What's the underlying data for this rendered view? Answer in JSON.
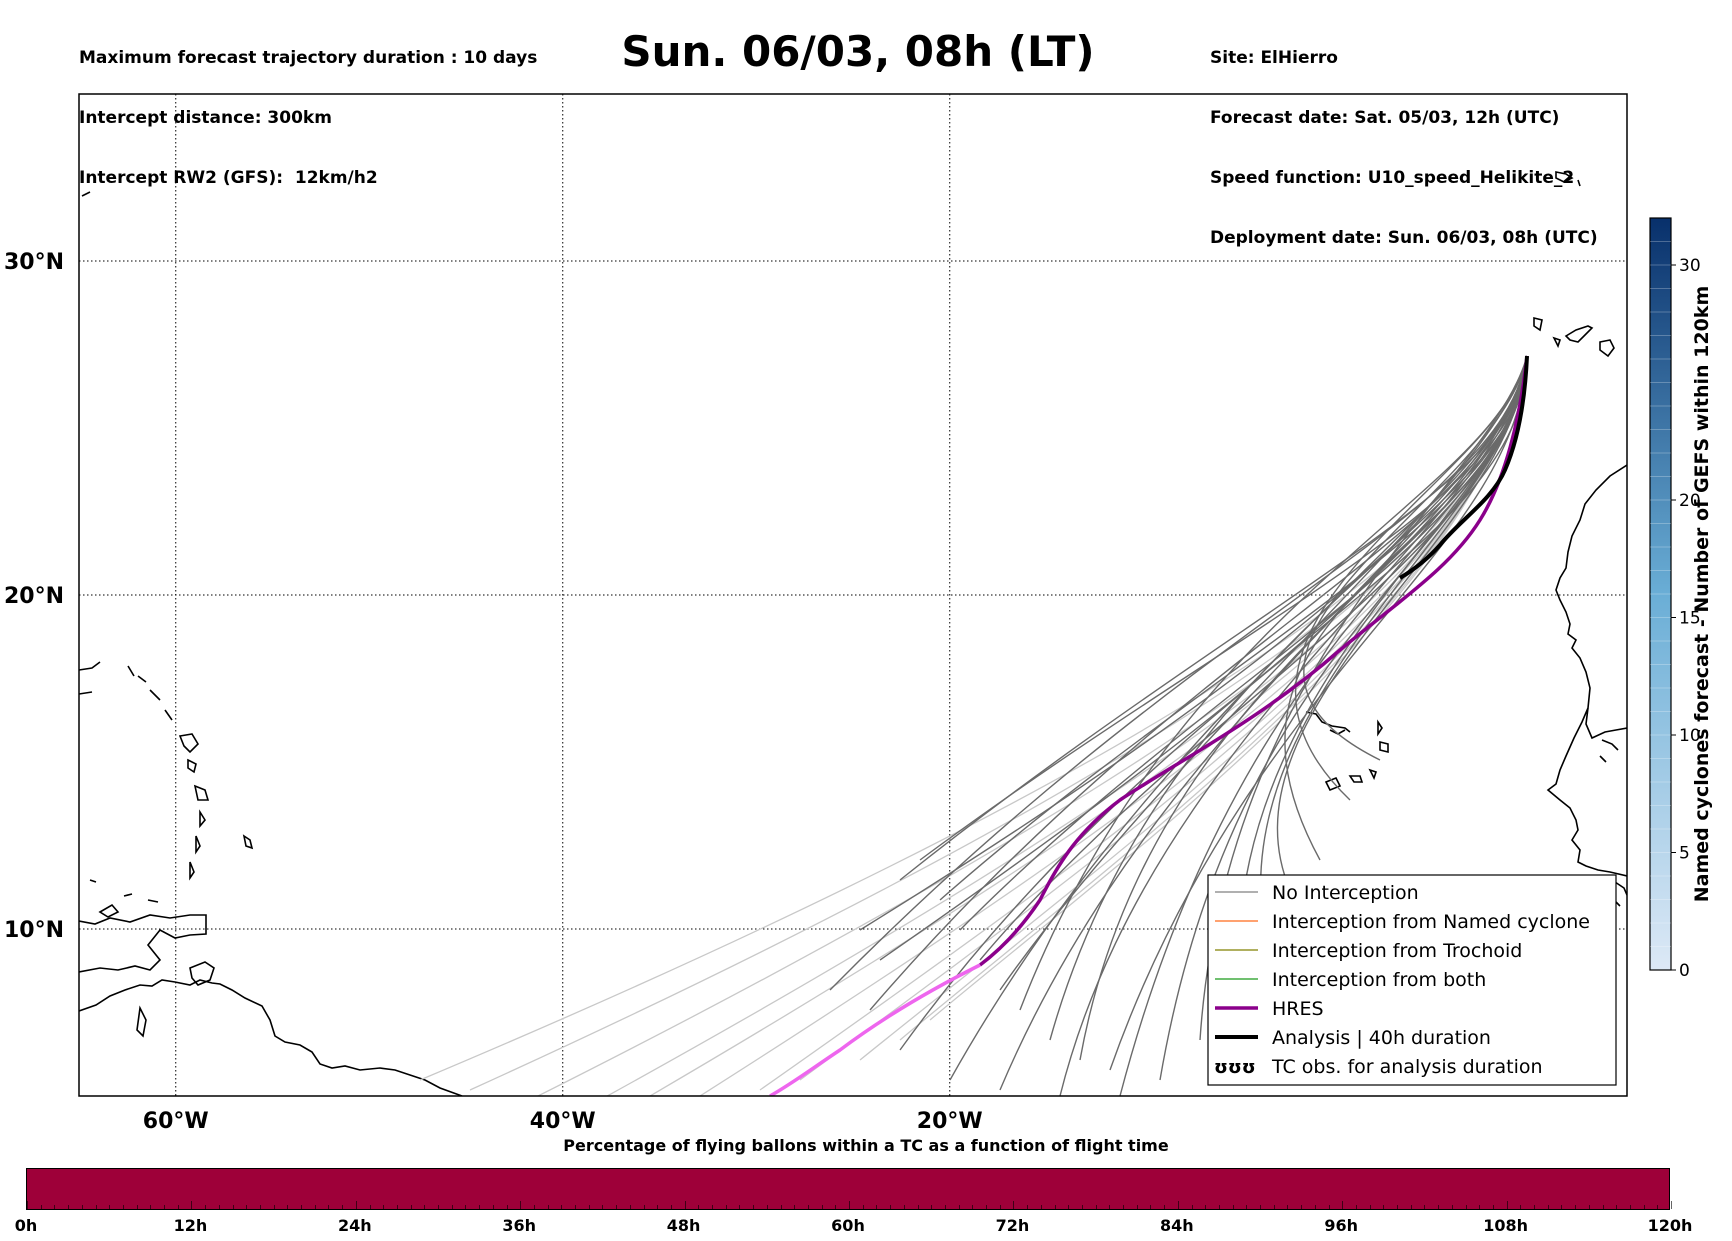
{
  "header": {
    "left_lines": [
      "Maximum forecast trajectory duration : 10 days",
      "Intercept distance: 300km",
      "Intercept RW2 (GFS):  12km/h2"
    ],
    "title": "Sun. 06/03, 08h (LT)",
    "right_lines": [
      "Site: ElHierro",
      "Forecast date: Sat. 05/03, 12h (UTC)",
      "Speed function: U10_speed_Helikite_2",
      "Deployment date: Sun. 06/03, 08h (UTC)"
    ]
  },
  "map": {
    "lon_range": [
      -65,
      15
    ],
    "lat_range": [
      5,
      35
    ],
    "lat_labels": [
      "30°N",
      "20°N",
      "10°N"
    ],
    "lat_values": [
      30,
      20,
      10
    ],
    "lon_labels": [
      "60°W",
      "40°W",
      "20°W"
    ],
    "lon_values": [
      -60,
      -40,
      -20
    ]
  },
  "legend": {
    "items": [
      {
        "label": "No Interception",
        "color": "#808080"
      },
      {
        "label": "Interception from Named cyclone",
        "color": "#ff6a1a"
      },
      {
        "label": "Interception from Trochoid",
        "color": "#808000"
      },
      {
        "label": "Interception from both",
        "color": "#1a9a1a"
      },
      {
        "label": "HRES",
        "color": "#8b008b"
      },
      {
        "label": "Analysis | 40h duration",
        "color": "#000000"
      },
      {
        "label": "TC obs. for analysis duration",
        "color": "#000000"
      }
    ],
    "tc_symbol": "ʊʊʊ"
  },
  "colorbar": {
    "label": "Named cyclones forecast - Number of GEFS within 120km",
    "min": 0,
    "max": 32,
    "ticks": [
      "0",
      "5",
      "10",
      "15",
      "20",
      "30"
    ],
    "tick_values": [
      0,
      5,
      10,
      15,
      20,
      30
    ],
    "color_low": "#dde9f6",
    "color_high": "#08306b"
  },
  "gauge": {
    "label": "Percentage of flying ballons within a TC as a function of flight time",
    "fill_color": "#9e0039",
    "ticks": [
      "0h",
      "12h",
      "24h",
      "36h",
      "48h",
      "60h",
      "72h",
      "84h",
      "96h",
      "108h",
      "120h"
    ]
  }
}
